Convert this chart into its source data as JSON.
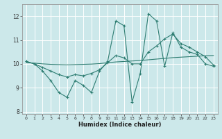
{
  "xlabel": "Humidex (Indice chaleur)",
  "xlim": [
    -0.5,
    23.5
  ],
  "ylim": [
    7.9,
    12.5
  ],
  "yticks": [
    8,
    9,
    10,
    11,
    12
  ],
  "xticks": [
    0,
    1,
    2,
    3,
    4,
    5,
    6,
    7,
    8,
    9,
    10,
    11,
    12,
    13,
    14,
    15,
    16,
    17,
    18,
    19,
    20,
    21,
    22,
    23
  ],
  "bg_color": "#cce8ea",
  "line_color": "#2e7d72",
  "grid_color": "#ffffff",
  "line1_x": [
    0,
    1,
    2,
    3,
    4,
    5,
    6,
    7,
    8,
    9,
    10,
    11,
    12,
    13,
    14,
    15,
    16,
    17,
    18,
    19,
    20,
    21,
    22,
    23
  ],
  "line1_y": [
    10.1,
    10.0,
    9.7,
    9.3,
    8.8,
    8.6,
    9.3,
    9.1,
    8.8,
    9.7,
    10.1,
    11.8,
    11.6,
    8.4,
    9.6,
    12.1,
    11.8,
    9.9,
    11.3,
    10.7,
    10.5,
    10.4,
    10.0,
    9.9
  ],
  "line2_x": [
    0,
    1,
    2,
    3,
    4,
    5,
    6,
    7,
    8,
    9,
    10,
    11,
    12,
    13,
    14,
    15,
    16,
    17,
    18,
    19,
    20,
    21,
    22,
    23
  ],
  "line2_y": [
    10.1,
    10.0,
    9.85,
    9.7,
    9.55,
    9.45,
    9.55,
    9.5,
    9.6,
    9.75,
    10.05,
    10.35,
    10.25,
    10.0,
    10.0,
    10.5,
    10.75,
    11.05,
    11.25,
    10.85,
    10.7,
    10.5,
    10.3,
    9.95
  ],
  "line3_x": [
    0,
    1,
    2,
    3,
    4,
    5,
    6,
    7,
    8,
    9,
    10,
    11,
    12,
    13,
    14,
    15,
    16,
    17,
    18,
    19,
    20,
    21,
    22,
    23
  ],
  "line3_y": [
    10.05,
    10.03,
    10.0,
    9.98,
    9.97,
    9.96,
    9.97,
    9.98,
    9.99,
    10.01,
    10.05,
    10.08,
    10.1,
    10.12,
    10.14,
    10.17,
    10.2,
    10.23,
    10.26,
    10.28,
    10.3,
    10.32,
    10.34,
    10.35
  ]
}
